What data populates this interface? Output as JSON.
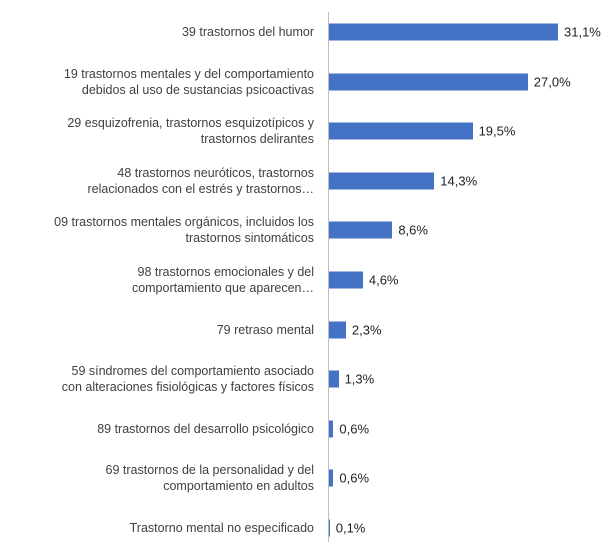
{
  "chart_data": {
    "type": "bar",
    "orientation": "horizontal",
    "categories": [
      "39 trastornos del humor",
      "19 trastornos mentales y del comportamiento\ndebidos al uso de sustancias psicoactivas",
      "29 esquizofrenia, trastornos esquizotípicos y\ntrastornos delirantes",
      "48 trastornos neuróticos, trastornos\nrelacionados con el estrés y trastornos…",
      "09 trastornos mentales orgánicos, incluidos los\ntrastornos sintomáticos",
      "98 trastornos emocionales y del\ncomportamiento que aparecen…",
      "79 retraso mental",
      "59 síndromes del comportamiento asociado\ncon alteraciones fisiológicas y factores físicos",
      "89 trastornos del desarrollo psicológico",
      "69 trastornos de la personalidad y del\ncomportamiento en adultos",
      "Trastorno mental no especificado"
    ],
    "values": [
      31.1,
      27.0,
      19.5,
      14.3,
      8.6,
      4.6,
      2.3,
      1.3,
      0.6,
      0.6,
      0.1
    ],
    "value_labels": [
      "31,1%",
      "27,0%",
      "19,5%",
      "14,3%",
      "8,6%",
      "4,6%",
      "2,3%",
      "1,3%",
      "0,6%",
      "0,6%",
      "0,1%"
    ],
    "color": "#4472c4"
  }
}
